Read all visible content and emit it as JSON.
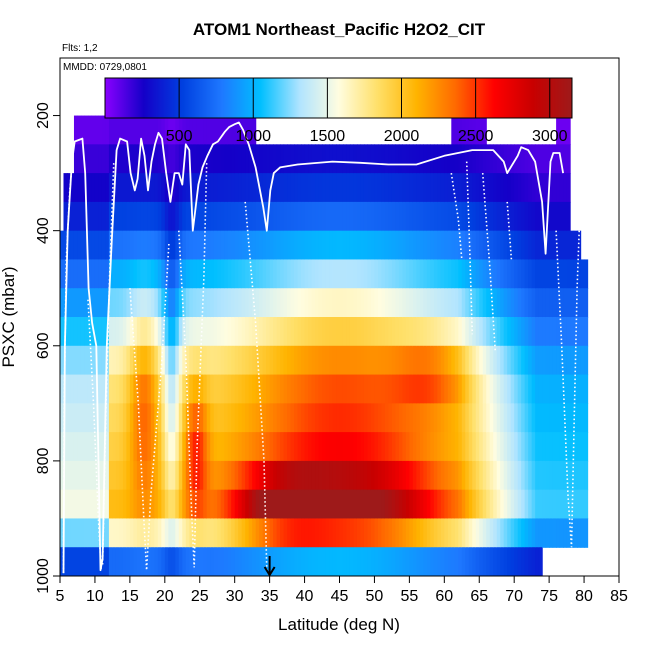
{
  "chart_data": {
    "type": "heatmap",
    "title": "ATOM1 Northeast_Pacific H2O2_CIT",
    "flights_label": "Flts: 1,2",
    "date_label": "MMDD: 0729,0801",
    "xlabel": "Latitude (deg N)",
    "ylabel": "PSXC (mbar)",
    "xlim": [
      5,
      85
    ],
    "ylim": [
      1000,
      100
    ],
    "x_ticks": [
      5,
      10,
      15,
      20,
      25,
      30,
      35,
      40,
      45,
      50,
      55,
      60,
      65,
      70,
      75,
      80,
      85
    ],
    "x_tick_labels": [
      "5",
      "10",
      "15",
      "20",
      "25",
      "30",
      "35",
      "40",
      "45",
      "50",
      "55",
      "60",
      "65",
      "70",
      "75",
      "80",
      "85"
    ],
    "y_ticks": [
      200,
      400,
      600,
      800,
      1000
    ],
    "y_tick_labels": [
      "200",
      "400",
      "600",
      "800",
      "1000"
    ],
    "colorbar": {
      "min": 0,
      "max": 3150,
      "ticks": [
        500,
        1000,
        1500,
        2000,
        2500,
        3000
      ],
      "tick_labels": [
        "500",
        "1000",
        "1500",
        "2000",
        "2500",
        "3000"
      ],
      "colors": [
        "#8a00ff",
        "#1400c8",
        "#0040e0",
        "#1e78ff",
        "#00bfff",
        "#b0e4ff",
        "#fffde0",
        "#ffe06a",
        "#ffb400",
        "#ff6a00",
        "#ff0000",
        "#c80000",
        "#9e1a1a"
      ]
    },
    "marker_latitude": 35,
    "grid": {
      "x_start": 5,
      "x_end": 80.5,
      "dx": 0.5,
      "p_top": 150,
      "dp": 50
    },
    "columns": [
      {
        "x0": 5,
        "x1": 5.5,
        "top": 400,
        "bot": 1000
      },
      {
        "x0": 5.5,
        "x1": 7,
        "top": 300,
        "bot": 1000
      },
      {
        "x0": 7,
        "x1": 26,
        "top": 200,
        "bot": 1000
      },
      {
        "x0": 26,
        "x1": 29,
        "top": 150,
        "bot": 1000
      },
      {
        "x0": 29,
        "x1": 33,
        "top": 200,
        "bot": 1000
      },
      {
        "x0": 33,
        "x1": 61,
        "top": 250,
        "bot": 1000
      },
      {
        "x0": 61,
        "x1": 66,
        "top": 200,
        "bot": 1000
      },
      {
        "x0": 66,
        "x1": 74,
        "top": 250,
        "bot": 1000
      },
      {
        "x0": 74,
        "x1": 76,
        "top": 250,
        "bot": 950
      },
      {
        "x0": 76,
        "x1": 78,
        "top": 200,
        "bot": 950
      },
      {
        "x0": 78,
        "x1": 79.5,
        "top": 400,
        "bot": 950
      },
      {
        "x0": 79.5,
        "x1": 80.5,
        "top": 450,
        "bot": 950
      }
    ],
    "profiles": [
      {
        "name": "lat-5.5",
        "points": [
          [
            5.5,
            995
          ],
          [
            5.6,
            700
          ],
          [
            5.9,
            450
          ],
          [
            6.4,
            330
          ],
          [
            7.0,
            250
          ]
        ]
      },
      {
        "name": "lat-10.6",
        "points": [
          [
            9.0,
            520
          ],
          [
            9.8,
            700
          ],
          [
            10.5,
            900
          ],
          [
            10.9,
            990
          ]
        ]
      },
      {
        "name": "lat-12",
        "points": [
          [
            11.1,
            980
          ],
          [
            11.6,
            700
          ],
          [
            12.1,
            480
          ],
          [
            12.7,
            280
          ]
        ]
      },
      {
        "name": "lat-17.3",
        "points": [
          [
            15.0,
            500
          ],
          [
            16.2,
            700
          ],
          [
            17.0,
            900
          ],
          [
            17.4,
            990
          ],
          [
            18.0,
            860
          ],
          [
            19.5,
            640
          ],
          [
            20.6,
            420
          ]
        ]
      },
      {
        "name": "lat-24",
        "points": [
          [
            22.0,
            400
          ],
          [
            23.0,
            620
          ],
          [
            23.8,
            880
          ],
          [
            24.2,
            985
          ],
          [
            24.6,
            780
          ],
          [
            25.6,
            480
          ],
          [
            26.0,
            280
          ]
        ]
      },
      {
        "name": "lat-34.6",
        "points": [
          [
            31.5,
            350
          ],
          [
            33.0,
            560
          ],
          [
            34.2,
            800
          ],
          [
            34.6,
            990
          ]
        ]
      },
      {
        "name": "lat-62",
        "points": [
          [
            61.0,
            300
          ],
          [
            62.0,
            380
          ],
          [
            62.5,
            450
          ]
        ]
      },
      {
        "name": "lat-64",
        "points": [
          [
            63.2,
            280
          ],
          [
            63.6,
            420
          ],
          [
            64.0,
            580
          ]
        ]
      },
      {
        "name": "lat-66.5",
        "points": [
          [
            65.5,
            300
          ],
          [
            66.5,
            460
          ],
          [
            67.3,
            610
          ]
        ]
      },
      {
        "name": "lat-70",
        "points": [
          [
            69.0,
            350
          ],
          [
            69.6,
            450
          ]
        ]
      },
      {
        "name": "lat-78",
        "points": [
          [
            76.0,
            400
          ],
          [
            76.8,
            600
          ],
          [
            77.7,
            860
          ],
          [
            78.2,
            950
          ],
          [
            78.6,
            720
          ],
          [
            79.0,
            500
          ],
          [
            79.3,
            400
          ]
        ]
      }
    ],
    "flight_track": [
      [
        5.5,
        995
      ],
      [
        5.7,
        600
      ],
      [
        6.1,
        400
      ],
      [
        6.7,
        280
      ],
      [
        7.1,
        245
      ],
      [
        8.2,
        240
      ],
      [
        8.6,
        300
      ],
      [
        9.1,
        500
      ],
      [
        9.6,
        560
      ],
      [
        10.2,
        600
      ],
      [
        10.8,
        990
      ],
      [
        11.1,
        970
      ],
      [
        11.7,
        600
      ],
      [
        12.4,
        420
      ],
      [
        13.1,
        260
      ],
      [
        13.6,
        240
      ],
      [
        14.6,
        245
      ],
      [
        15.1,
        300
      ],
      [
        15.7,
        330
      ],
      [
        16.1,
        310
      ],
      [
        16.6,
        240
      ],
      [
        17.1,
        270
      ],
      [
        17.6,
        330
      ],
      [
        18.1,
        280
      ],
      [
        18.6,
        250
      ],
      [
        19.1,
        230
      ],
      [
        19.6,
        240
      ],
      [
        20.2,
        300
      ],
      [
        20.8,
        350
      ],
      [
        21.4,
        300
      ],
      [
        22.0,
        300
      ],
      [
        22.5,
        320
      ],
      [
        23.0,
        250
      ],
      [
        23.5,
        260
      ],
      [
        24.0,
        400
      ],
      [
        24.8,
        320
      ],
      [
        25.4,
        290
      ],
      [
        26.1,
        270
      ],
      [
        26.9,
        250
      ],
      [
        27.6,
        245
      ],
      [
        28.6,
        228
      ],
      [
        29.2,
        220
      ],
      [
        30.0,
        215
      ],
      [
        30.6,
        212
      ],
      [
        31.2,
        225
      ],
      [
        32.0,
        250
      ],
      [
        33.0,
        290
      ],
      [
        34.1,
        360
      ],
      [
        34.6,
        400
      ],
      [
        35.1,
        330
      ],
      [
        35.6,
        300
      ],
      [
        36.5,
        290
      ],
      [
        39.0,
        285
      ],
      [
        44.0,
        280
      ],
      [
        48.0,
        282
      ],
      [
        52.0,
        285
      ],
      [
        56.0,
        285
      ],
      [
        60.0,
        270
      ],
      [
        64.0,
        260
      ],
      [
        67.0,
        260
      ],
      [
        68.5,
        280
      ],
      [
        69.0,
        300
      ],
      [
        70.5,
        270
      ],
      [
        71.0,
        255
      ],
      [
        72.0,
        260
      ],
      [
        73.0,
        280
      ],
      [
        74.0,
        350
      ],
      [
        74.5,
        440
      ],
      [
        75.2,
        280
      ],
      [
        75.6,
        265
      ],
      [
        76.5,
        265
      ],
      [
        77.0,
        300
      ]
    ]
  }
}
